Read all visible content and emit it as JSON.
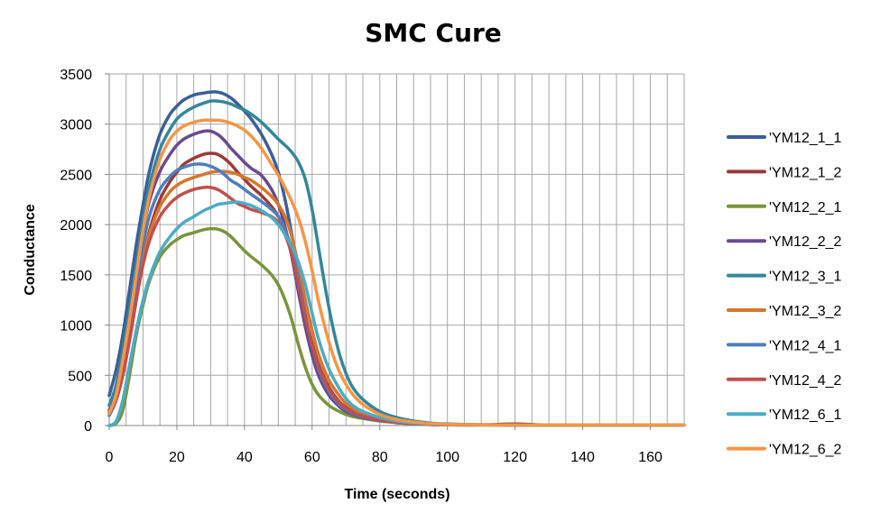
{
  "chart_data": {
    "type": "line",
    "title": "SMC Cure",
    "xlabel": "Time (seconds)",
    "ylabel": "Conductance",
    "xlim": [
      0,
      170
    ],
    "ylim": [
      0,
      3500
    ],
    "x_major_ticks": [
      0,
      20,
      40,
      60,
      80,
      100,
      120,
      140,
      160
    ],
    "x_minor_gridline_step": 5,
    "y_ticks": [
      0,
      500,
      1000,
      1500,
      2000,
      2500,
      3000,
      3500
    ],
    "grid": true,
    "legend_position": "right",
    "series": [
      {
        "name": "'YM12_1_1",
        "color": "#3a5f9a",
        "x": [
          0,
          2,
          4,
          6,
          8,
          10,
          12,
          15,
          18,
          20,
          22,
          25,
          28,
          30,
          32,
          34,
          36,
          38,
          40,
          42,
          45,
          48,
          50,
          52,
          54,
          56,
          58,
          60,
          62,
          65,
          68,
          70,
          72,
          75,
          80,
          85,
          90,
          95,
          100,
          110,
          120,
          130,
          140,
          150,
          160,
          170
        ],
        "y": [
          300,
          550,
          900,
          1350,
          1800,
          2200,
          2550,
          2900,
          3100,
          3180,
          3240,
          3290,
          3310,
          3320,
          3320,
          3300,
          3260,
          3200,
          3130,
          3050,
          2900,
          2700,
          2520,
          2250,
          1900,
          1500,
          1100,
          760,
          520,
          310,
          190,
          140,
          110,
          80,
          50,
          30,
          20,
          15,
          10,
          8,
          5,
          5,
          5,
          5,
          5,
          5
        ]
      },
      {
        "name": "'YM12_1_2",
        "color": "#9b3b39",
        "x": [
          0,
          2,
          4,
          6,
          8,
          10,
          12,
          15,
          18,
          20,
          22,
          25,
          28,
          30,
          32,
          34,
          36,
          38,
          40,
          42,
          45,
          48,
          50,
          52,
          54,
          56,
          58,
          60,
          62,
          65,
          68,
          70,
          72,
          75,
          80,
          85,
          90,
          95,
          100,
          110,
          120,
          130,
          140,
          150,
          160,
          170
        ],
        "y": [
          130,
          250,
          500,
          850,
          1250,
          1650,
          1950,
          2250,
          2430,
          2520,
          2600,
          2660,
          2700,
          2710,
          2700,
          2660,
          2600,
          2520,
          2450,
          2380,
          2290,
          2180,
          2080,
          1930,
          1700,
          1400,
          1080,
          820,
          600,
          380,
          240,
          180,
          140,
          100,
          60,
          35,
          20,
          12,
          8,
          6,
          15,
          5,
          5,
          5,
          5,
          5
        ]
      },
      {
        "name": "'YM12_2_1",
        "color": "#79953c",
        "x": [
          0,
          2,
          4,
          6,
          8,
          10,
          12,
          15,
          18,
          20,
          22,
          25,
          28,
          30,
          32,
          34,
          36,
          38,
          40,
          42,
          45,
          48,
          50,
          52,
          54,
          56,
          58,
          60,
          62,
          65,
          68,
          70,
          72,
          75,
          80,
          85,
          90,
          95,
          100,
          110,
          120,
          130,
          140,
          150,
          160,
          170
        ],
        "y": [
          0,
          20,
          150,
          500,
          900,
          1200,
          1450,
          1680,
          1800,
          1850,
          1890,
          1920,
          1950,
          1960,
          1955,
          1930,
          1880,
          1810,
          1740,
          1680,
          1600,
          1500,
          1400,
          1250,
          1050,
          800,
          580,
          410,
          300,
          200,
          140,
          110,
          90,
          70,
          45,
          30,
          20,
          12,
          8,
          6,
          5,
          5,
          5,
          5,
          5,
          5
        ]
      },
      {
        "name": "'YM12_2_2",
        "color": "#6a4b8e",
        "x": [
          0,
          2,
          4,
          6,
          8,
          10,
          12,
          15,
          18,
          20,
          22,
          25,
          28,
          30,
          32,
          34,
          36,
          38,
          40,
          42,
          45,
          48,
          50,
          52,
          54,
          56,
          58,
          60,
          62,
          65,
          68,
          70,
          72,
          75,
          80,
          85,
          90,
          95,
          100,
          110,
          120,
          130,
          140,
          150,
          160,
          170
        ],
        "y": [
          150,
          350,
          700,
          1100,
          1550,
          1950,
          2250,
          2530,
          2700,
          2790,
          2850,
          2900,
          2930,
          2930,
          2900,
          2840,
          2760,
          2690,
          2620,
          2560,
          2490,
          2350,
          2200,
          1980,
          1680,
          1320,
          980,
          700,
          490,
          300,
          190,
          140,
          110,
          80,
          50,
          30,
          20,
          12,
          8,
          6,
          5,
          5,
          5,
          5,
          5,
          5
        ]
      },
      {
        "name": "'YM12_3_1",
        "color": "#34879a",
        "x": [
          0,
          2,
          4,
          6,
          8,
          10,
          12,
          15,
          18,
          20,
          22,
          25,
          28,
          30,
          32,
          34,
          36,
          38,
          40,
          42,
          45,
          48,
          50,
          52,
          54,
          56,
          58,
          60,
          62,
          64,
          66,
          68,
          70,
          72,
          75,
          80,
          85,
          90,
          95,
          100,
          110,
          120,
          130,
          140,
          150,
          160,
          170
        ],
        "y": [
          200,
          400,
          750,
          1150,
          1600,
          2050,
          2400,
          2750,
          2950,
          3050,
          3110,
          3170,
          3210,
          3230,
          3230,
          3220,
          3200,
          3170,
          3140,
          3100,
          3020,
          2920,
          2850,
          2790,
          2720,
          2620,
          2450,
          2150,
          1750,
          1350,
          1000,
          720,
          520,
          380,
          260,
          140,
          80,
          45,
          25,
          15,
          8,
          5,
          5,
          5,
          5,
          5,
          5
        ]
      },
      {
        "name": "'YM12_3_2",
        "color": "#d7772d",
        "x": [
          0,
          2,
          4,
          6,
          8,
          10,
          12,
          15,
          18,
          20,
          22,
          25,
          28,
          30,
          32,
          34,
          36,
          38,
          40,
          42,
          45,
          48,
          50,
          52,
          54,
          56,
          58,
          60,
          62,
          65,
          68,
          70,
          72,
          75,
          80,
          85,
          90,
          95,
          100,
          110,
          120,
          130,
          140,
          150,
          160,
          170
        ],
        "y": [
          130,
          280,
          550,
          900,
          1300,
          1650,
          1920,
          2180,
          2330,
          2390,
          2430,
          2470,
          2500,
          2520,
          2530,
          2530,
          2520,
          2500,
          2470,
          2440,
          2370,
          2280,
          2200,
          2080,
          1880,
          1580,
          1250,
          950,
          700,
          450,
          300,
          220,
          170,
          120,
          70,
          40,
          25,
          15,
          10,
          6,
          5,
          5,
          5,
          5,
          5,
          5
        ]
      },
      {
        "name": "'YM12_4_1",
        "color": "#4d7fbd",
        "x": [
          0,
          2,
          4,
          6,
          8,
          10,
          12,
          15,
          18,
          20,
          22,
          25,
          28,
          30,
          32,
          34,
          36,
          38,
          40,
          42,
          45,
          48,
          50,
          52,
          54,
          56,
          58,
          60,
          62,
          65,
          68,
          70,
          72,
          75,
          80,
          85,
          90,
          95,
          100,
          110,
          120,
          130,
          140,
          150,
          160,
          170
        ],
        "y": [
          100,
          250,
          550,
          950,
          1400,
          1800,
          2100,
          2350,
          2480,
          2540,
          2570,
          2600,
          2600,
          2580,
          2550,
          2500,
          2440,
          2400,
          2350,
          2300,
          2230,
          2150,
          2080,
          1950,
          1750,
          1450,
          1100,
          800,
          560,
          340,
          210,
          160,
          120,
          90,
          55,
          30,
          18,
          10,
          6,
          5,
          5,
          5,
          5,
          5,
          5,
          5
        ]
      },
      {
        "name": "'YM12_4_2",
        "color": "#c0504d",
        "x": [
          0,
          2,
          4,
          6,
          8,
          10,
          12,
          15,
          18,
          20,
          22,
          25,
          28,
          30,
          32,
          34,
          36,
          38,
          40,
          42,
          45,
          48,
          50,
          52,
          54,
          56,
          58,
          60,
          62,
          65,
          68,
          70,
          72,
          75,
          80,
          85,
          90,
          95,
          100,
          110,
          120,
          130,
          140,
          150,
          160,
          170
        ],
        "y": [
          120,
          250,
          500,
          850,
          1250,
          1600,
          1850,
          2080,
          2210,
          2270,
          2310,
          2350,
          2370,
          2370,
          2350,
          2310,
          2260,
          2210,
          2180,
          2150,
          2120,
          2080,
          2020,
          1900,
          1700,
          1400,
          1080,
          800,
          580,
          360,
          230,
          170,
          130,
          95,
          55,
          30,
          18,
          10,
          6,
          5,
          5,
          5,
          5,
          5,
          5,
          5
        ]
      },
      {
        "name": "'YM12_6_1",
        "color": "#4bacc6",
        "x": [
          0,
          2,
          4,
          6,
          8,
          10,
          12,
          15,
          18,
          20,
          22,
          25,
          28,
          30,
          32,
          34,
          36,
          38,
          40,
          42,
          45,
          48,
          50,
          52,
          54,
          56,
          58,
          60,
          62,
          65,
          68,
          70,
          72,
          75,
          80,
          85,
          90,
          95,
          100,
          110,
          120,
          130,
          140,
          150,
          160,
          170
        ],
        "y": [
          0,
          40,
          250,
          600,
          950,
          1250,
          1480,
          1730,
          1880,
          1960,
          2020,
          2080,
          2140,
          2170,
          2200,
          2210,
          2220,
          2225,
          2210,
          2190,
          2140,
          2070,
          2000,
          1900,
          1780,
          1620,
          1400,
          1120,
          850,
          560,
          370,
          270,
          200,
          140,
          80,
          45,
          25,
          15,
          10,
          6,
          5,
          5,
          5,
          5,
          5,
          5
        ]
      },
      {
        "name": "'YM12_6_2",
        "color": "#f79646",
        "x": [
          0,
          2,
          4,
          6,
          8,
          10,
          12,
          15,
          18,
          20,
          22,
          25,
          28,
          30,
          32,
          34,
          36,
          38,
          40,
          42,
          45,
          48,
          50,
          52,
          54,
          56,
          58,
          60,
          62,
          64,
          66,
          68,
          70,
          72,
          75,
          80,
          85,
          90,
          95,
          100,
          110,
          120,
          130,
          140,
          150,
          160,
          170
        ],
        "y": [
          120,
          300,
          650,
          1050,
          1500,
          1950,
          2300,
          2650,
          2850,
          2930,
          2980,
          3020,
          3040,
          3040,
          3040,
          3030,
          3010,
          2980,
          2940,
          2880,
          2760,
          2600,
          2490,
          2370,
          2230,
          2060,
          1830,
          1540,
          1220,
          950,
          720,
          540,
          410,
          310,
          210,
          110,
          60,
          35,
          20,
          12,
          8,
          5,
          5,
          5,
          5,
          5,
          5
        ]
      }
    ]
  }
}
